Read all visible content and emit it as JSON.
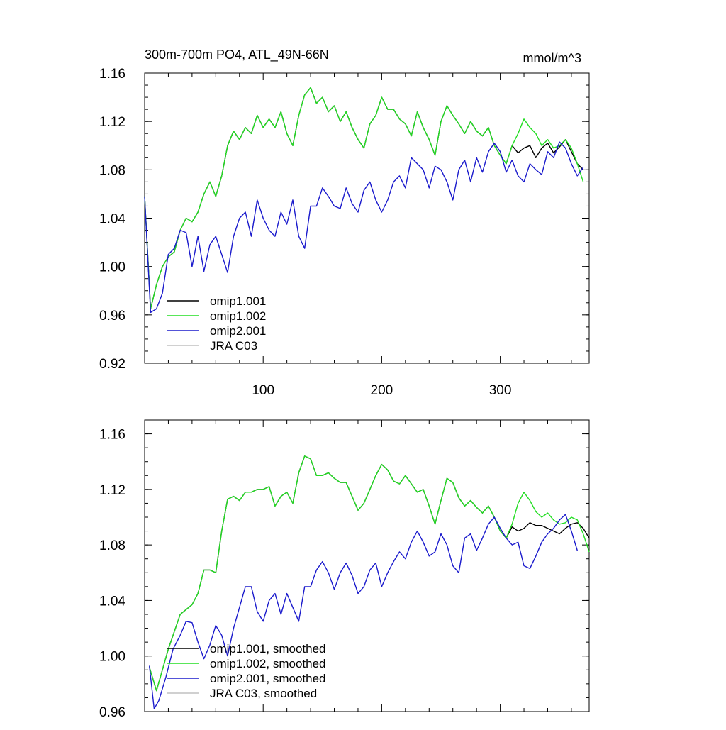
{
  "chart_data": [
    {
      "type": "line",
      "title": "300m-700m PO4, ATL_49N-66N",
      "units": "mmol/m^3",
      "xlim": [
        0,
        375
      ],
      "ylim": [
        0.92,
        1.16
      ],
      "xticks": [
        100,
        200,
        300
      ],
      "yticks": [
        0.92,
        0.96,
        1.0,
        1.04,
        1.08,
        1.12,
        1.16
      ],
      "ytick_labels": [
        "0.92",
        "0.96",
        "1.00",
        "1.04",
        "1.08",
        "1.12",
        "1.16"
      ],
      "xtick_labels": [
        "100",
        "200",
        "300"
      ],
      "legend": [
        "omip1.001",
        "omip1.002",
        "omip2.001",
        "JRA C03"
      ],
      "series": [
        {
          "name": "omip1.001",
          "color": "#000000",
          "x": [
            0,
            5,
            10,
            15,
            20,
            25,
            30,
            35,
            40,
            45,
            50,
            55,
            60,
            65,
            70,
            75,
            80,
            85,
            90,
            95,
            100,
            105,
            110,
            115,
            120,
            125,
            130,
            135,
            140,
            145,
            150,
            155,
            160,
            165,
            170,
            175,
            180,
            185,
            190,
            195,
            200,
            205,
            210,
            215,
            220,
            225,
            230,
            235,
            240,
            245,
            250,
            255,
            260,
            265,
            270,
            275,
            280,
            285,
            290,
            295,
            300,
            305,
            310,
            315,
            320,
            325,
            330,
            335,
            340,
            345,
            350,
            355,
            360,
            365,
            370
          ],
          "y": [
            1.058,
            0.965,
            0.985,
            1.0,
            1.008,
            1.012,
            1.03,
            1.04,
            1.037,
            1.045,
            1.06,
            1.07,
            1.058,
            1.075,
            1.1,
            1.112,
            1.105,
            1.115,
            1.11,
            1.125,
            1.115,
            1.122,
            1.115,
            1.128,
            1.11,
            1.1,
            1.125,
            1.142,
            1.148,
            1.135,
            1.14,
            1.128,
            1.133,
            1.12,
            1.128,
            1.115,
            1.105,
            1.098,
            1.118,
            1.125,
            1.14,
            1.13,
            1.13,
            1.122,
            1.118,
            1.108,
            1.128,
            1.115,
            1.105,
            1.092,
            1.12,
            1.133,
            1.125,
            1.118,
            1.11,
            1.12,
            1.112,
            1.108,
            1.115,
            1.1,
            1.092,
            1.085,
            1.1,
            1.094,
            1.098,
            1.1,
            1.09,
            1.098,
            1.102,
            1.094,
            1.099,
            1.105,
            1.095,
            1.085,
            1.08
          ]
        },
        {
          "name": "omip1.002",
          "color": "#22dd22",
          "x": [
            0,
            5,
            10,
            15,
            20,
            25,
            30,
            35,
            40,
            45,
            50,
            55,
            60,
            65,
            70,
            75,
            80,
            85,
            90,
            95,
            100,
            105,
            110,
            115,
            120,
            125,
            130,
            135,
            140,
            145,
            150,
            155,
            160,
            165,
            170,
            175,
            180,
            185,
            190,
            195,
            200,
            205,
            210,
            215,
            220,
            225,
            230,
            235,
            240,
            245,
            250,
            255,
            260,
            265,
            270,
            275,
            280,
            285,
            290,
            295,
            300,
            305,
            310,
            315,
            320,
            325,
            330,
            335,
            340,
            345,
            350,
            355,
            360,
            365,
            370
          ],
          "y": [
            1.058,
            0.965,
            0.985,
            1.0,
            1.008,
            1.012,
            1.03,
            1.04,
            1.037,
            1.045,
            1.06,
            1.07,
            1.058,
            1.075,
            1.1,
            1.112,
            1.105,
            1.115,
            1.11,
            1.125,
            1.115,
            1.122,
            1.115,
            1.128,
            1.11,
            1.1,
            1.125,
            1.142,
            1.148,
            1.135,
            1.14,
            1.128,
            1.133,
            1.12,
            1.128,
            1.115,
            1.105,
            1.098,
            1.118,
            1.125,
            1.14,
            1.13,
            1.13,
            1.122,
            1.118,
            1.108,
            1.128,
            1.115,
            1.105,
            1.092,
            1.12,
            1.133,
            1.125,
            1.118,
            1.11,
            1.12,
            1.112,
            1.108,
            1.115,
            1.1,
            1.092,
            1.085,
            1.1,
            1.11,
            1.122,
            1.115,
            1.11,
            1.1,
            1.105,
            1.098,
            1.1,
            1.105,
            1.098,
            1.085,
            1.07
          ]
        },
        {
          "name": "omip2.001",
          "color": "#1a1acc",
          "x": [
            0,
            5,
            10,
            15,
            20,
            25,
            30,
            35,
            40,
            45,
            50,
            55,
            60,
            65,
            70,
            75,
            80,
            85,
            90,
            95,
            100,
            105,
            110,
            115,
            120,
            125,
            130,
            135,
            140,
            145,
            150,
            155,
            160,
            165,
            170,
            175,
            180,
            185,
            190,
            195,
            200,
            205,
            210,
            215,
            220,
            225,
            230,
            235,
            240,
            245,
            250,
            255,
            260,
            265,
            270,
            275,
            280,
            285,
            290,
            295,
            300,
            305,
            310,
            315,
            320,
            325,
            330,
            335,
            340,
            345,
            350,
            355,
            360,
            365,
            370
          ],
          "y": [
            1.058,
            0.962,
            0.965,
            0.978,
            1.01,
            1.015,
            1.03,
            1.028,
            1.0,
            1.025,
            0.996,
            1.018,
            1.025,
            1.01,
            0.995,
            1.025,
            1.04,
            1.045,
            1.025,
            1.055,
            1.04,
            1.03,
            1.025,
            1.045,
            1.035,
            1.055,
            1.025,
            1.015,
            1.05,
            1.05,
            1.065,
            1.058,
            1.05,
            1.048,
            1.065,
            1.052,
            1.045,
            1.063,
            1.07,
            1.055,
            1.045,
            1.055,
            1.07,
            1.075,
            1.065,
            1.09,
            1.085,
            1.08,
            1.065,
            1.083,
            1.08,
            1.07,
            1.055,
            1.08,
            1.088,
            1.07,
            1.09,
            1.078,
            1.095,
            1.102,
            1.095,
            1.078,
            1.088,
            1.075,
            1.07,
            1.085,
            1.08,
            1.076,
            1.095,
            1.09,
            1.103,
            1.098,
            1.085,
            1.075,
            1.082
          ]
        },
        {
          "name": "JRA C03",
          "color": "#c0c0c0",
          "x": [],
          "y": []
        }
      ]
    },
    {
      "type": "line",
      "title": "",
      "xlim": [
        0,
        375
      ],
      "ylim": [
        0.96,
        1.17
      ],
      "xticks": [
        100,
        200,
        300
      ],
      "yticks": [
        0.96,
        1.0,
        1.04,
        1.08,
        1.12,
        1.16
      ],
      "ytick_labels": [
        "0.96",
        "1.00",
        "1.04",
        "1.08",
        "1.12",
        "1.16"
      ],
      "xtick_labels": [],
      "legend": [
        "omip1.001, smoothed",
        "omip1.002, smoothed",
        "omip2.001, smoothed",
        "JRA C03, smoothed"
      ],
      "series": [
        {
          "name": "omip1.001, smoothed",
          "color": "#000000",
          "x": [
            4,
            10,
            20,
            30,
            40,
            45,
            50,
            55,
            60,
            65,
            70,
            75,
            80,
            85,
            90,
            95,
            100,
            105,
            110,
            115,
            120,
            125,
            130,
            135,
            140,
            145,
            150,
            155,
            160,
            165,
            170,
            175,
            180,
            185,
            190,
            195,
            200,
            205,
            210,
            215,
            220,
            225,
            230,
            235,
            240,
            245,
            250,
            255,
            260,
            265,
            270,
            275,
            280,
            285,
            290,
            295,
            300,
            305,
            310,
            315,
            320,
            325,
            330,
            335,
            340,
            345,
            350,
            355,
            360,
            365,
            370,
            375
          ],
          "y": [
            0.992,
            0.975,
            1.005,
            1.03,
            1.037,
            1.045,
            1.062,
            1.062,
            1.06,
            1.09,
            1.113,
            1.115,
            1.112,
            1.118,
            1.118,
            1.12,
            1.12,
            1.122,
            1.108,
            1.115,
            1.118,
            1.11,
            1.132,
            1.144,
            1.142,
            1.13,
            1.13,
            1.132,
            1.128,
            1.125,
            1.125,
            1.115,
            1.105,
            1.11,
            1.12,
            1.13,
            1.138,
            1.134,
            1.126,
            1.124,
            1.13,
            1.124,
            1.118,
            1.12,
            1.108,
            1.095,
            1.112,
            1.128,
            1.125,
            1.114,
            1.108,
            1.112,
            1.107,
            1.103,
            1.108,
            1.1,
            1.09,
            1.085,
            1.093,
            1.09,
            1.092,
            1.096,
            1.094,
            1.094,
            1.092,
            1.09,
            1.088,
            1.092,
            1.095,
            1.096,
            1.092,
            1.085
          ]
        },
        {
          "name": "omip1.002, smoothed",
          "color": "#22dd22",
          "x": [
            4,
            10,
            20,
            30,
            40,
            45,
            50,
            55,
            60,
            65,
            70,
            75,
            80,
            85,
            90,
            95,
            100,
            105,
            110,
            115,
            120,
            125,
            130,
            135,
            140,
            145,
            150,
            155,
            160,
            165,
            170,
            175,
            180,
            185,
            190,
            195,
            200,
            205,
            210,
            215,
            220,
            225,
            230,
            235,
            240,
            245,
            250,
            255,
            260,
            265,
            270,
            275,
            280,
            285,
            290,
            295,
            300,
            305,
            310,
            315,
            320,
            325,
            330,
            335,
            340,
            345,
            350,
            355,
            360,
            365,
            370,
            375
          ],
          "y": [
            0.992,
            0.975,
            1.005,
            1.03,
            1.037,
            1.045,
            1.062,
            1.062,
            1.06,
            1.09,
            1.113,
            1.115,
            1.112,
            1.118,
            1.118,
            1.12,
            1.12,
            1.122,
            1.108,
            1.115,
            1.118,
            1.11,
            1.132,
            1.144,
            1.142,
            1.13,
            1.13,
            1.132,
            1.128,
            1.125,
            1.125,
            1.115,
            1.105,
            1.11,
            1.12,
            1.13,
            1.138,
            1.134,
            1.126,
            1.124,
            1.13,
            1.124,
            1.118,
            1.12,
            1.108,
            1.095,
            1.112,
            1.128,
            1.125,
            1.114,
            1.108,
            1.112,
            1.107,
            1.103,
            1.108,
            1.1,
            1.09,
            1.085,
            1.095,
            1.11,
            1.118,
            1.112,
            1.104,
            1.1,
            1.103,
            1.098,
            1.095,
            1.096,
            1.1,
            1.098,
            1.088,
            1.075
          ]
        },
        {
          "name": "omip2.001, smoothed",
          "color": "#1a1acc",
          "x": [
            4,
            8,
            12,
            18,
            24,
            30,
            35,
            40,
            45,
            50,
            55,
            60,
            65,
            70,
            75,
            80,
            85,
            90,
            95,
            100,
            105,
            110,
            115,
            120,
            125,
            130,
            135,
            140,
            145,
            150,
            155,
            160,
            165,
            170,
            175,
            180,
            185,
            190,
            195,
            200,
            205,
            210,
            215,
            220,
            225,
            230,
            235,
            240,
            245,
            250,
            255,
            260,
            265,
            270,
            275,
            280,
            285,
            290,
            295,
            300,
            305,
            310,
            315,
            320,
            325,
            330,
            335,
            340,
            345,
            350,
            355,
            360,
            365
          ],
          "y": [
            0.993,
            0.962,
            0.968,
            0.985,
            1.005,
            1.015,
            1.025,
            1.024,
            1.01,
            0.998,
            1.008,
            1.022,
            1.015,
            1.0,
            1.02,
            1.035,
            1.05,
            1.05,
            1.032,
            1.025,
            1.04,
            1.045,
            1.03,
            1.045,
            1.035,
            1.025,
            1.05,
            1.05,
            1.062,
            1.068,
            1.06,
            1.048,
            1.06,
            1.067,
            1.058,
            1.045,
            1.05,
            1.062,
            1.067,
            1.05,
            1.06,
            1.068,
            1.075,
            1.07,
            1.082,
            1.09,
            1.082,
            1.072,
            1.075,
            1.088,
            1.08,
            1.065,
            1.06,
            1.085,
            1.088,
            1.076,
            1.085,
            1.095,
            1.1,
            1.092,
            1.085,
            1.08,
            1.082,
            1.065,
            1.063,
            1.072,
            1.082,
            1.088,
            1.092,
            1.098,
            1.102,
            1.09,
            1.076
          ]
        },
        {
          "name": "JRA C03, smoothed",
          "color": "#c0c0c0",
          "x": [],
          "y": []
        }
      ]
    }
  ]
}
